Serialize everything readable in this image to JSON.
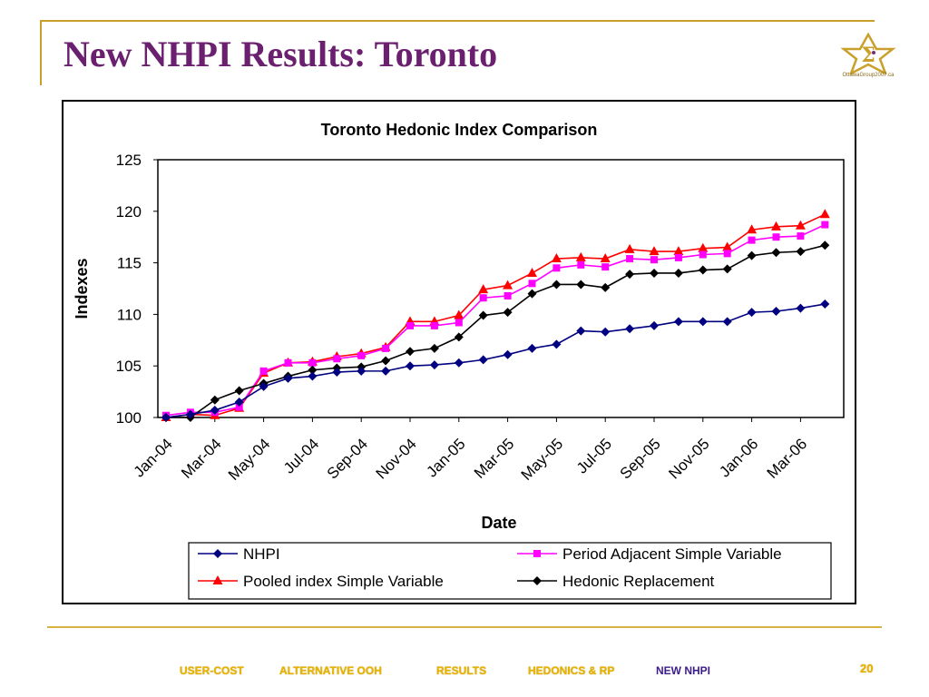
{
  "slide": {
    "title": "New NHPI Results: Toronto",
    "logo_text": "OttawaGroup2007.ca",
    "page_number": "20"
  },
  "nav": {
    "items": [
      "USER-COST",
      "ALTERNATIVE OOH",
      "RESULTS",
      "HEDONICS & RP",
      "NEW NHPI"
    ],
    "active": "NEW NHPI"
  },
  "colors": {
    "title": "#6b1f6f",
    "gold": "#c9a02a",
    "nav": "#e8b400",
    "nav_active": "#3a1c8a"
  },
  "chart_data": {
    "type": "line",
    "title": "Toronto Hedonic Index Comparison",
    "xlabel": "Date",
    "ylabel": "Indexes",
    "ylim": [
      100,
      125
    ],
    "yticks": [
      100,
      105,
      110,
      115,
      120,
      125
    ],
    "categories": [
      "Jan-04",
      "Feb-04",
      "Mar-04",
      "Apr-04",
      "May-04",
      "Jun-04",
      "Jul-04",
      "Aug-04",
      "Sep-04",
      "Oct-04",
      "Nov-04",
      "Dec-04",
      "Jan-05",
      "Feb-05",
      "Mar-05",
      "Apr-05",
      "May-05",
      "Jun-05",
      "Jul-05",
      "Aug-05",
      "Sep-05",
      "Oct-05",
      "Nov-05",
      "Dec-05",
      "Jan-06",
      "Feb-06",
      "Mar-06",
      "Apr-06"
    ],
    "tick_labels": [
      "Jan-04",
      "Mar-04",
      "May-04",
      "Jul-04",
      "Sep-04",
      "Nov-04",
      "Jan-05",
      "Mar-05",
      "May-05",
      "Jul-05",
      "Sep-05",
      "Nov-05",
      "Jan-06",
      "Mar-06"
    ],
    "grid": false,
    "legend_position": "bottom",
    "series": [
      {
        "name": "NHPI",
        "color": "#000080",
        "marker": "diamond",
        "values": [
          100,
          100.3,
          100.7,
          101.5,
          103.0,
          103.8,
          104.0,
          104.4,
          104.5,
          104.5,
          105.0,
          105.1,
          105.3,
          105.6,
          106.1,
          106.7,
          107.1,
          108.4,
          108.3,
          108.6,
          108.9,
          109.3,
          109.3,
          109.3,
          110.2,
          110.3,
          110.6,
          111.0
        ]
      },
      {
        "name": "Period Adjacent Simple Variable",
        "color": "#ff00ff",
        "marker": "square",
        "values": [
          100.2,
          100.5,
          100.5,
          101.0,
          104.5,
          105.3,
          105.3,
          105.7,
          106.0,
          106.7,
          108.9,
          108.9,
          109.2,
          111.6,
          111.8,
          113.0,
          114.5,
          114.8,
          114.6,
          115.4,
          115.3,
          115.5,
          115.8,
          115.9,
          117.2,
          117.5,
          117.6,
          118.7
        ]
      },
      {
        "name": "Pooled index Simple Variable",
        "color": "#ff0000",
        "marker": "triangle",
        "values": [
          100.0,
          100.3,
          100.2,
          100.9,
          104.3,
          105.3,
          105.4,
          105.9,
          106.2,
          106.8,
          109.3,
          109.3,
          109.9,
          112.4,
          112.8,
          114.0,
          115.4,
          115.5,
          115.4,
          116.3,
          116.1,
          116.1,
          116.4,
          116.5,
          118.2,
          118.5,
          118.6,
          119.7
        ]
      },
      {
        "name": "Hedonic Replacement",
        "color": "#000000",
        "marker": "diamond",
        "values": [
          100.0,
          100.0,
          101.7,
          102.6,
          103.3,
          104.0,
          104.6,
          104.8,
          104.9,
          105.5,
          106.4,
          106.7,
          107.8,
          109.9,
          110.2,
          112.0,
          112.9,
          112.9,
          112.6,
          113.9,
          114.0,
          114.0,
          114.3,
          114.4,
          115.7,
          116.0,
          116.1,
          116.7
        ]
      }
    ]
  }
}
